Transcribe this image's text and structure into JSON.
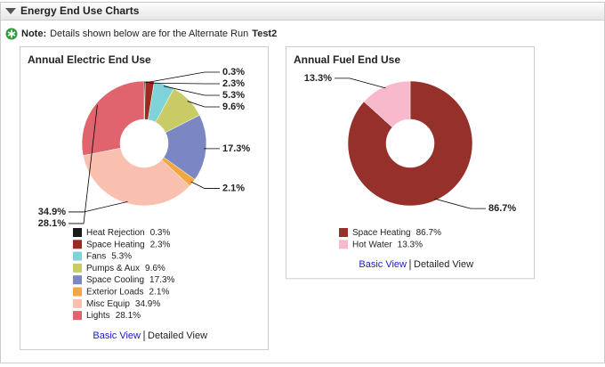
{
  "header": {
    "title": "Energy End Use Charts"
  },
  "note": {
    "label": "Note:",
    "text": "Details shown below are for the Alternate Run",
    "run": "Test2"
  },
  "chart_data": [
    {
      "type": "donut",
      "title": "Annual Electric End Use",
      "categories": [
        "Heat Rejection",
        "Space Heating",
        "Fans",
        "Pumps & Aux",
        "Space Cooling",
        "Exterior Loads",
        "Misc Equip",
        "Lights"
      ],
      "values": [
        0.3,
        2.3,
        5.3,
        9.6,
        17.3,
        2.1,
        34.9,
        28.1
      ],
      "value_labels": [
        "0.3%",
        "2.3%",
        "5.3%",
        "9.6%",
        "17.3%",
        "2.1%",
        "34.9%",
        "28.1%"
      ],
      "colors": [
        "#1a1a1a",
        "#9b2a22",
        "#7fd3d8",
        "#c9cc66",
        "#7b87c2",
        "#f4a640",
        "#f9c0b0",
        "#e0646e"
      ],
      "links": [
        "Basic View",
        "Detailed View"
      ]
    },
    {
      "type": "donut",
      "title": "Annual Fuel End Use",
      "categories": [
        "Space Heating",
        "Hot Water"
      ],
      "values": [
        86.7,
        13.3
      ],
      "value_labels": [
        "86.7%",
        "13.3%"
      ],
      "colors": [
        "#96302a",
        "#f8b9cc"
      ],
      "links": [
        "Basic View",
        "Detailed View"
      ]
    }
  ]
}
